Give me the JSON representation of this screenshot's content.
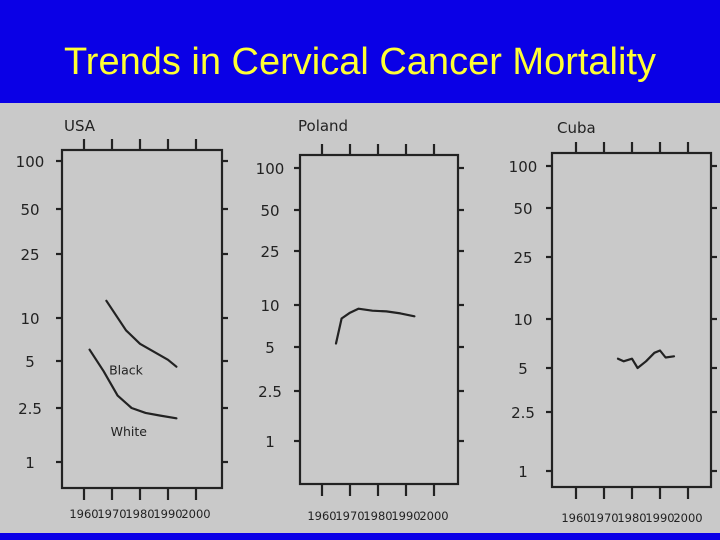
{
  "slide": {
    "title": "Trends in Cervical Cancer Mortality"
  },
  "colors": {
    "title_background": "#0a00e6",
    "title_text": "#ffff33",
    "plot_background": "#c9c9c9",
    "ink": "#222222"
  },
  "chart_data": [
    {
      "type": "line",
      "title": "USA",
      "scale": "log",
      "ylim": [
        1,
        100
      ],
      "xlim": [
        1960,
        2000
      ],
      "y_ticks": [
        {
          "value": 100,
          "label": "100"
        },
        {
          "value": 50,
          "label": "50"
        },
        {
          "value": 25,
          "label": "25"
        },
        {
          "value": 10,
          "label": "10"
        },
        {
          "value": 5,
          "label": "5"
        },
        {
          "value": 2.5,
          "label": "2.5"
        },
        {
          "value": 1,
          "label": "1"
        }
      ],
      "x_ticks": [
        "1960",
        "1970",
        "1980",
        "1990",
        "2000"
      ],
      "series": [
        {
          "name": "Black",
          "label_at": [
            1975,
            4.1
          ],
          "x": [
            1968,
            1975,
            1980,
            1985,
            1990,
            1993
          ],
          "y": [
            12.8,
            8.2,
            6.6,
            5.8,
            5.1,
            4.6
          ]
        },
        {
          "name": "White",
          "label_at": [
            1976,
            1.55
          ],
          "x": [
            1962,
            1967,
            1972,
            1977,
            1982,
            1987,
            1993
          ],
          "y": [
            6.0,
            4.3,
            3.0,
            2.5,
            2.3,
            2.2,
            2.1
          ]
        }
      ],
      "grid": false,
      "legend": "none"
    },
    {
      "type": "line",
      "title": "Poland",
      "scale": "log",
      "ylim": [
        1,
        100
      ],
      "xlim": [
        1960,
        2000
      ],
      "y_ticks": [
        {
          "value": 100,
          "label": "100"
        },
        {
          "value": 50,
          "label": "50"
        },
        {
          "value": 25,
          "label": "25"
        },
        {
          "value": 10,
          "label": "10"
        },
        {
          "value": 5,
          "label": "5"
        },
        {
          "value": 2.5,
          "label": "2.5"
        },
        {
          "value": 1,
          "label": "1"
        }
      ],
      "x_ticks": [
        "1960",
        "1970",
        "1980",
        "1990",
        "2000"
      ],
      "series": [
        {
          "x": [
            1965,
            1967,
            1970,
            1973,
            1978,
            1983,
            1988,
            1993
          ],
          "y": [
            5.3,
            8.0,
            8.8,
            9.4,
            9.1,
            9.0,
            8.7,
            8.3
          ]
        }
      ],
      "grid": false,
      "legend": "none"
    },
    {
      "type": "line",
      "title": "Cuba",
      "scale": "log",
      "ylim": [
        1,
        100
      ],
      "xlim": [
        1960,
        2000
      ],
      "y_ticks": [
        {
          "value": 100,
          "label": "100"
        },
        {
          "value": 50,
          "label": "50"
        },
        {
          "value": 25,
          "label": "25"
        },
        {
          "value": 10,
          "label": "10"
        },
        {
          "value": 5,
          "label": "5"
        },
        {
          "value": 2.5,
          "label": "2.5"
        },
        {
          "value": 1,
          "label": "1"
        }
      ],
      "x_ticks": [
        "1960",
        "1970",
        "1980",
        "1990",
        "2000"
      ],
      "series": [
        {
          "x": [
            1975,
            1977,
            1980,
            1982,
            1985,
            1988,
            1990,
            1992,
            1995
          ],
          "y": [
            5.7,
            5.5,
            5.7,
            5.0,
            5.5,
            6.2,
            6.4,
            5.8,
            5.9
          ]
        }
      ],
      "grid": false,
      "legend": "none"
    }
  ]
}
